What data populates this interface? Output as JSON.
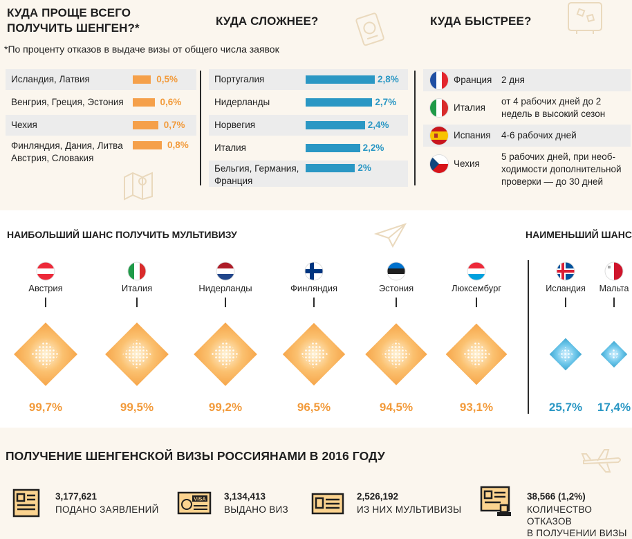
{
  "easier": {
    "title_l1": "КУДА ПРОЩЕ ВСЕГО",
    "title_l2": "ПОЛУЧИТЬ ШЕНГЕН?*",
    "footnote": "*По проценту отказов в выдаче визы от общего числа заявок"
  },
  "harder": {
    "title": "КУДА СЛОЖНЕЕ?"
  },
  "faster": {
    "title": "КУДА БЫСТРЕЕ?",
    "items": [
      {
        "country": "Франция",
        "time_l1": "2 дня",
        "time_l2": "",
        "time_l3": ""
      },
      {
        "country": "Италия",
        "time_l1": "от 4 рабочих дней до 2",
        "time_l2": "недель в высокий сезон",
        "time_l3": ""
      },
      {
        "country": "Испания",
        "time_l1": "4-6 рабочих дней",
        "time_l2": "",
        "time_l3": ""
      },
      {
        "country": "Чехия",
        "time_l1": "5 рабочих дней, при необ-",
        "time_l2": "ходимости дополнительной",
        "time_l3": "проверки — до 30 дней"
      }
    ]
  },
  "multi": {
    "best_title": "НАИБОЛЬШИЙ ШАНС ПОЛУЧИТЬ МУЛЬТИВИЗУ",
    "worst_title": "НАИМЕНЬШИЙ ШАНС"
  },
  "stats": {
    "title": "ПОЛУЧЕНИЕ ШЕНГЕНСКОЙ ВИЗЫ РОССИЯНАМИ В 2016 ГОДУ",
    "items": [
      {
        "value": "3,177,621",
        "label_l1": "ПОДАНО ЗАЯВЛЕНИЙ",
        "label_l2": ""
      },
      {
        "value": "3,134,413",
        "label_l1": "ВЫДАНО ВИЗ",
        "label_l2": ""
      },
      {
        "value": "2,526,192",
        "label_l1": "ИЗ НИХ МУЛЬТИВИЗЫ",
        "label_l2": ""
      },
      {
        "value": "38,566 (1,2%)",
        "label_l1": "КОЛИЧЕСТВО ОТКАЗОВ",
        "label_l2": "В ПОЛУЧЕНИИ ВИЗЫ"
      }
    ],
    "visa_badge": "VISA"
  },
  "colors": {
    "orange": "#f5a04a",
    "orange_text": "#f29b3c",
    "blue": "#2a97c4",
    "blue_text": "#2a97c4",
    "dark": "#1f1f1f"
  },
  "chart_data": [
    {
      "type": "bar",
      "title": "КУДА ПРОЩЕ ВСЕГО ПОЛУЧИТЬ ШЕНГЕН?*",
      "categories_l1": [
        "Исландия, Латвия",
        "Венгрия, Греция, Эстония",
        "Чехия",
        "Финляндия, Дания, Литва"
      ],
      "categories_l2": [
        "",
        "",
        "",
        "Австрия, Словакия"
      ],
      "values": [
        0.5,
        0.6,
        0.7,
        0.8
      ],
      "labels": [
        "0,5%",
        "0,6%",
        "0,7%",
        "0,8%"
      ]
    },
    {
      "type": "bar",
      "title": "КУДА СЛОЖНЕЕ?",
      "categories_l1": [
        "Португалия",
        "Нидерланды",
        "Норвегия",
        "Италия",
        "Бельгия, Германия,"
      ],
      "categories_l2": [
        "",
        "",
        "",
        "",
        "Франция"
      ],
      "values": [
        2.8,
        2.7,
        2.4,
        2.2,
        2.0
      ],
      "labels": [
        "2,8%",
        "2,7%",
        "2,4%",
        "2,2%",
        "2%"
      ]
    },
    {
      "type": "bar",
      "title": "НАИБОЛЬШИЙ ШАНС ПОЛУЧИТЬ МУЛЬТИВИЗУ",
      "categories": [
        "Австрия",
        "Италия",
        "Нидерланды",
        "Финляндия",
        "Эстония",
        "Люксембург"
      ],
      "values": [
        99.7,
        99.5,
        99.2,
        96.5,
        94.5,
        93.1
      ],
      "labels": [
        "99,7%",
        "99,5%",
        "99,2%",
        "96,5%",
        "94,5%",
        "93,1%"
      ]
    },
    {
      "type": "bar",
      "title": "НАИМЕНЬШИЙ ШАНС",
      "categories": [
        "Исландия",
        "Мальта"
      ],
      "values": [
        25.7,
        17.4
      ],
      "labels": [
        "25,7%",
        "17,4%"
      ]
    }
  ]
}
